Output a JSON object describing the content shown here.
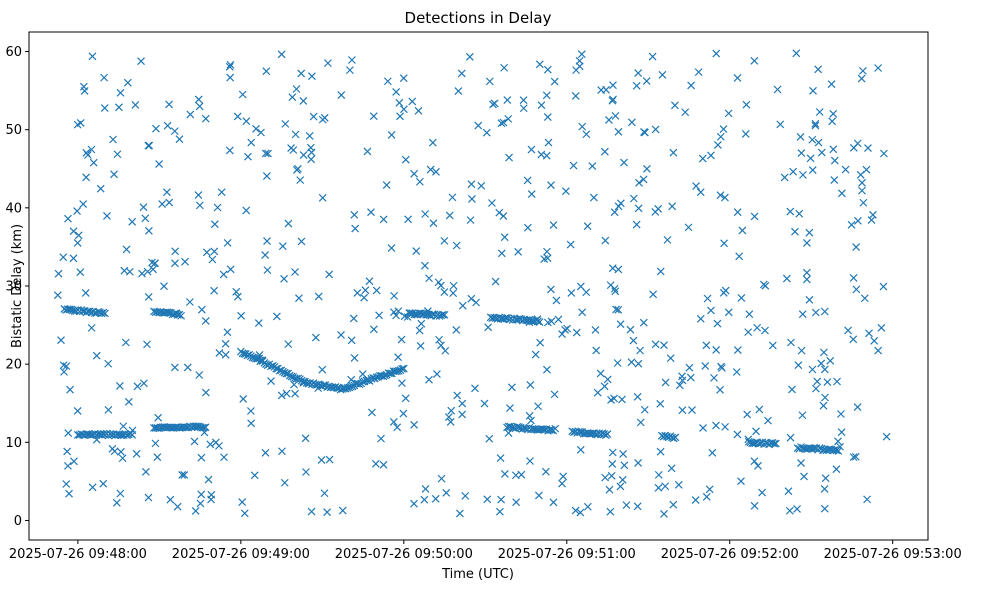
{
  "chart_data": {
    "type": "scatter",
    "title": "Detections in Delay",
    "xlabel": "Time (UTC)",
    "ylabel": "Bistatic Delay (km)",
    "x_tick_labels": [
      "2025-07-26 09:48:00",
      "2025-07-26 09:49:00",
      "2025-07-26 09:50:00",
      "2025-07-26 09:51:00",
      "2025-07-26 09:52:00",
      "2025-07-26 09:53:00"
    ],
    "y_tick_labels": [
      "0",
      "10",
      "20",
      "30",
      "40",
      "50",
      "60"
    ],
    "xlim": [
      "2025-07-26 09:47:42",
      "2025-07-26 09:53:13"
    ],
    "ylim": [
      -2.5,
      62.5
    ],
    "marker": "x",
    "marker_color": "#1f77b4",
    "grid": false,
    "tracks": [
      {
        "x": [
          "2025-07-26 09:47:55",
          "2025-07-26 09:48:10"
        ],
        "y": [
          27.0,
          26.5
        ]
      },
      {
        "x": [
          "2025-07-26 09:48:28",
          "2025-07-26 09:48:38"
        ],
        "y": [
          26.8,
          26.3
        ]
      },
      {
        "x": [
          "2025-07-26 09:48:28",
          "2025-07-26 09:48:47"
        ],
        "y": [
          11.8,
          12.0
        ]
      },
      {
        "x": [
          "2025-07-26 09:48:00",
          "2025-07-26 09:48:20"
        ],
        "y": [
          11.0,
          11.0
        ]
      },
      {
        "x": [
          "2025-07-26 09:49:00",
          "2025-07-26 09:49:08"
        ],
        "y": [
          21.5,
          20.5
        ]
      },
      {
        "x": [
          "2025-07-26 09:49:08",
          "2025-07-26 09:49:23"
        ],
        "y": [
          20.3,
          17.8
        ]
      },
      {
        "x": [
          "2025-07-26 09:49:23",
          "2025-07-26 09:49:38"
        ],
        "y": [
          17.7,
          16.8
        ]
      },
      {
        "x": [
          "2025-07-26 09:49:38",
          "2025-07-26 09:50:00"
        ],
        "y": [
          16.9,
          19.4
        ]
      },
      {
        "x": [
          "2025-07-26 09:50:02",
          "2025-07-26 09:50:15"
        ],
        "y": [
          26.5,
          26.2
        ]
      },
      {
        "x": [
          "2025-07-26 09:50:32",
          "2025-07-26 09:50:50"
        ],
        "y": [
          26.0,
          25.5
        ]
      },
      {
        "x": [
          "2025-07-26 09:50:38",
          "2025-07-26 09:50:55"
        ],
        "y": [
          12.0,
          11.5
        ]
      },
      {
        "x": [
          "2025-07-26 09:51:02",
          "2025-07-26 09:51:15"
        ],
        "y": [
          11.3,
          11.0
        ]
      },
      {
        "x": [
          "2025-07-26 09:51:35",
          "2025-07-26 09:51:40"
        ],
        "y": [
          10.8,
          10.6
        ]
      },
      {
        "x": [
          "2025-07-26 09:52:07",
          "2025-07-26 09:52:17"
        ],
        "y": [
          10.0,
          9.8
        ]
      },
      {
        "x": [
          "2025-07-26 09:52:25",
          "2025-07-26 09:52:40"
        ],
        "y": [
          9.3,
          9.0
        ]
      }
    ],
    "scattered_point_count": 700,
    "scattered_x_range": [
      "2025-07-26 09:47:52",
      "2025-07-26 09:52:58"
    ],
    "scattered_y_range": [
      0.8,
      59.9
    ]
  }
}
